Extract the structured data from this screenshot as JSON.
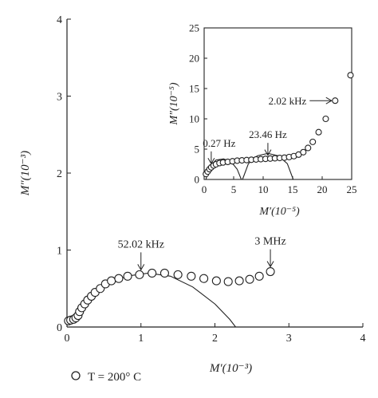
{
  "chart_data": [
    {
      "type": "scatter",
      "title": "",
      "xlabel": "M′(10⁻³)",
      "ylabel": "M″(10⁻³)",
      "xlim": [
        0,
        4
      ],
      "ylim": [
        0,
        4
      ],
      "xticks": [
        "0",
        "1",
        "2",
        "3",
        "4"
      ],
      "yticks": [
        "0",
        "1",
        "2",
        "3",
        "4"
      ],
      "grid": false,
      "legend": {
        "label": "T = 200° C",
        "position": "bottom-left"
      },
      "series": [
        {
          "name": "T = 200° C",
          "marker": "open-circle",
          "x": [
            0.02,
            0.05,
            0.09,
            0.12,
            0.15,
            0.17,
            0.2,
            0.24,
            0.28,
            0.33,
            0.38,
            0.45,
            0.52,
            0.6,
            0.7,
            0.82,
            0.98,
            1.15,
            1.32,
            1.5,
            1.68,
            1.85,
            2.02,
            2.18,
            2.33,
            2.47,
            2.6,
            2.75
          ],
          "y": [
            0.08,
            0.09,
            0.1,
            0.12,
            0.15,
            0.2,
            0.25,
            0.3,
            0.35,
            0.4,
            0.45,
            0.5,
            0.56,
            0.6,
            0.63,
            0.66,
            0.68,
            0.7,
            0.7,
            0.68,
            0.66,
            0.63,
            0.6,
            0.59,
            0.6,
            0.62,
            0.66,
            0.72
          ]
        },
        {
          "name": "",
          "type": "line",
          "shape": "semicircle",
          "x": [
            0,
            0.2,
            0.5,
            0.8,
            1.1,
            1.4,
            1.7,
            2.0,
            2.2,
            2.28
          ],
          "y": [
            0.04,
            0.27,
            0.52,
            0.66,
            0.7,
            0.66,
            0.52,
            0.3,
            0.1,
            0.0
          ]
        }
      ],
      "annotations": [
        {
          "text": "52.02 kHz",
          "x": 1.0,
          "y": 0.68
        },
        {
          "text": "3 MHz",
          "x": 2.75,
          "y": 0.72
        }
      ]
    },
    {
      "type": "scatter",
      "title": "",
      "xlabel": "M′(10⁻⁵)",
      "ylabel": "M″(10⁻⁵)",
      "xlim": [
        0,
        25
      ],
      "ylim": [
        0,
        25
      ],
      "xticks": [
        "0",
        "5",
        "10",
        "15",
        "20",
        "25"
      ],
      "yticks": [
        "0",
        "5",
        "10",
        "15",
        "20",
        "25"
      ],
      "grid": false,
      "series": [
        {
          "name": "",
          "marker": "open-circle",
          "x": [
            0.3,
            0.6,
            0.9,
            1.2,
            1.6,
            2.0,
            2.6,
            3.2,
            4.0,
            4.8,
            5.6,
            6.4,
            7.2,
            8.0,
            8.8,
            9.6,
            10.4,
            11.2,
            12.0,
            12.8,
            13.6,
            14.4,
            15.2,
            16.0,
            16.8,
            17.6,
            18.4,
            19.4,
            20.6,
            22.2,
            24.8
          ],
          "y": [
            0.9,
            1.3,
            1.7,
            2.0,
            2.3,
            2.5,
            2.7,
            2.8,
            2.9,
            3.0,
            3.1,
            3.15,
            3.2,
            3.25,
            3.3,
            3.35,
            3.4,
            3.45,
            3.5,
            3.55,
            3.6,
            3.7,
            3.85,
            4.1,
            4.5,
            5.2,
            6.2,
            7.8,
            10.0,
            13.0,
            17.2
          ]
        },
        {
          "name": "",
          "type": "line",
          "shape": "semicircle",
          "x": [
            0.3,
            1.0,
            2.0,
            3.3,
            4.6,
            5.6,
            6.3
          ],
          "y": [
            0.0,
            2.2,
            3.2,
            3.4,
            2.9,
            1.7,
            0.0
          ]
        },
        {
          "name": "",
          "type": "line",
          "shape": "semicircle",
          "x": [
            6.5,
            7.5,
            9.0,
            10.8,
            12.6,
            14.1,
            15.1
          ],
          "y": [
            0.0,
            2.6,
            3.9,
            4.3,
            3.9,
            2.6,
            0.0
          ]
        }
      ],
      "annotations": [
        {
          "text": "0.27 Hz",
          "x": 1.2,
          "y": 2.0
        },
        {
          "text": "23.46 Hz",
          "x": 10.8,
          "y": 3.4
        },
        {
          "text": "2.02 kHz",
          "x": 22.2,
          "y": 13.0
        }
      ]
    }
  ]
}
